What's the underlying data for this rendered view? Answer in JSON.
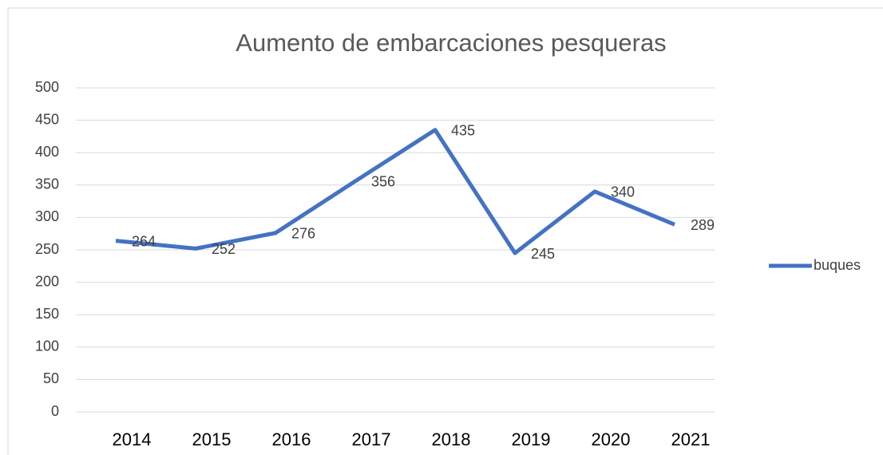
{
  "chart_data": {
    "type": "line",
    "title": "Aumento de embarcaciones pesqueras",
    "categories": [
      "2014",
      "2015",
      "2016",
      "2017",
      "2018",
      "2019",
      "2020",
      "2021"
    ],
    "series": [
      {
        "name": "buques",
        "color": "#4472c4",
        "values": [
          264,
          252,
          276,
          356,
          435,
          245,
          340,
          289
        ]
      }
    ],
    "ylim": [
      0,
      500
    ],
    "yticks": [
      0,
      50,
      100,
      150,
      200,
      250,
      300,
      350,
      400,
      450,
      500
    ],
    "grid": true,
    "legend": "right"
  }
}
